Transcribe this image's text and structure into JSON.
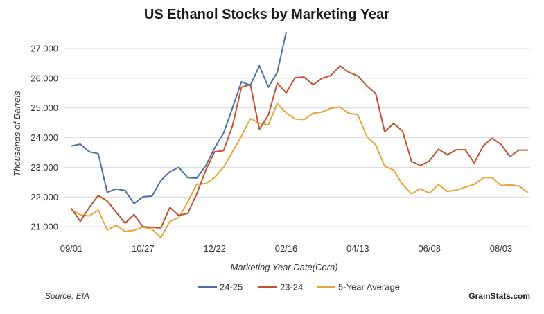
{
  "chart_data": {
    "type": "line",
    "title": "US Ethanol Stocks by Marketing Year",
    "xlabel": "Marketing Year Date(Corn)",
    "ylabel": "Thousands of Barrels",
    "ylim": [
      20700,
      27700
    ],
    "yticks": [
      21000,
      22000,
      23000,
      24000,
      25000,
      26000,
      27000
    ],
    "ytick_labels": [
      "21,000",
      "22,000",
      "23,000",
      "24,000",
      "25,000",
      "26,000",
      "27,000"
    ],
    "xticks": [
      {
        "week": 0,
        "label": "09/01"
      },
      {
        "week": 8,
        "label": "10/27"
      },
      {
        "week": 16,
        "label": "12/22"
      },
      {
        "week": 24,
        "label": "02/16"
      },
      {
        "week": 32,
        "label": "04/13"
      },
      {
        "week": 40,
        "label": "06/08"
      },
      {
        "week": 48,
        "label": "08/03"
      }
    ],
    "grid": true,
    "legend_position": "bottom",
    "series": [
      {
        "name": "24-25",
        "color": "#4a6fa5",
        "values": [
          23720,
          23780,
          23520,
          23460,
          22160,
          22270,
          22220,
          21780,
          22010,
          22030,
          22560,
          22850,
          23000,
          22650,
          22640,
          23050,
          23650,
          24150,
          25000,
          25880,
          25760,
          26420,
          25700,
          26200,
          27560
        ]
      },
      {
        "name": "23-24",
        "color": "#c0502f",
        "values": [
          21620,
          21180,
          21650,
          22050,
          21870,
          21490,
          21120,
          21410,
          21000,
          20980,
          20960,
          21650,
          21380,
          21450,
          22100,
          22900,
          23520,
          23560,
          24400,
          25700,
          25790,
          24280,
          24760,
          25830,
          25510,
          26020,
          26040,
          25780,
          26000,
          26090,
          26420,
          26200,
          26080,
          25740,
          25480,
          24200,
          24480,
          24220,
          23200,
          23060,
          23220,
          23610,
          23420,
          23590,
          23590,
          23150,
          23720,
          23980,
          23770,
          23360,
          23580,
          23580
        ]
      },
      {
        "name": "5-Year Average",
        "color": "#e8a33a",
        "values": [
          21560,
          21400,
          21360,
          21560,
          20890,
          21050,
          20840,
          20880,
          20990,
          20920,
          20630,
          21180,
          21310,
          21830,
          22430,
          22450,
          22660,
          23000,
          23520,
          24050,
          24640,
          24490,
          24430,
          25150,
          24830,
          24630,
          24610,
          24820,
          24860,
          24990,
          25030,
          24820,
          24770,
          24040,
          23750,
          23040,
          22910,
          22420,
          22110,
          22280,
          22130,
          22420,
          22190,
          22230,
          22330,
          22420,
          22650,
          22650,
          22390,
          22410,
          22370,
          22150
        ]
      }
    ]
  },
  "footer": {
    "source": "Source: EIA",
    "brand": "GrainStats.com"
  }
}
